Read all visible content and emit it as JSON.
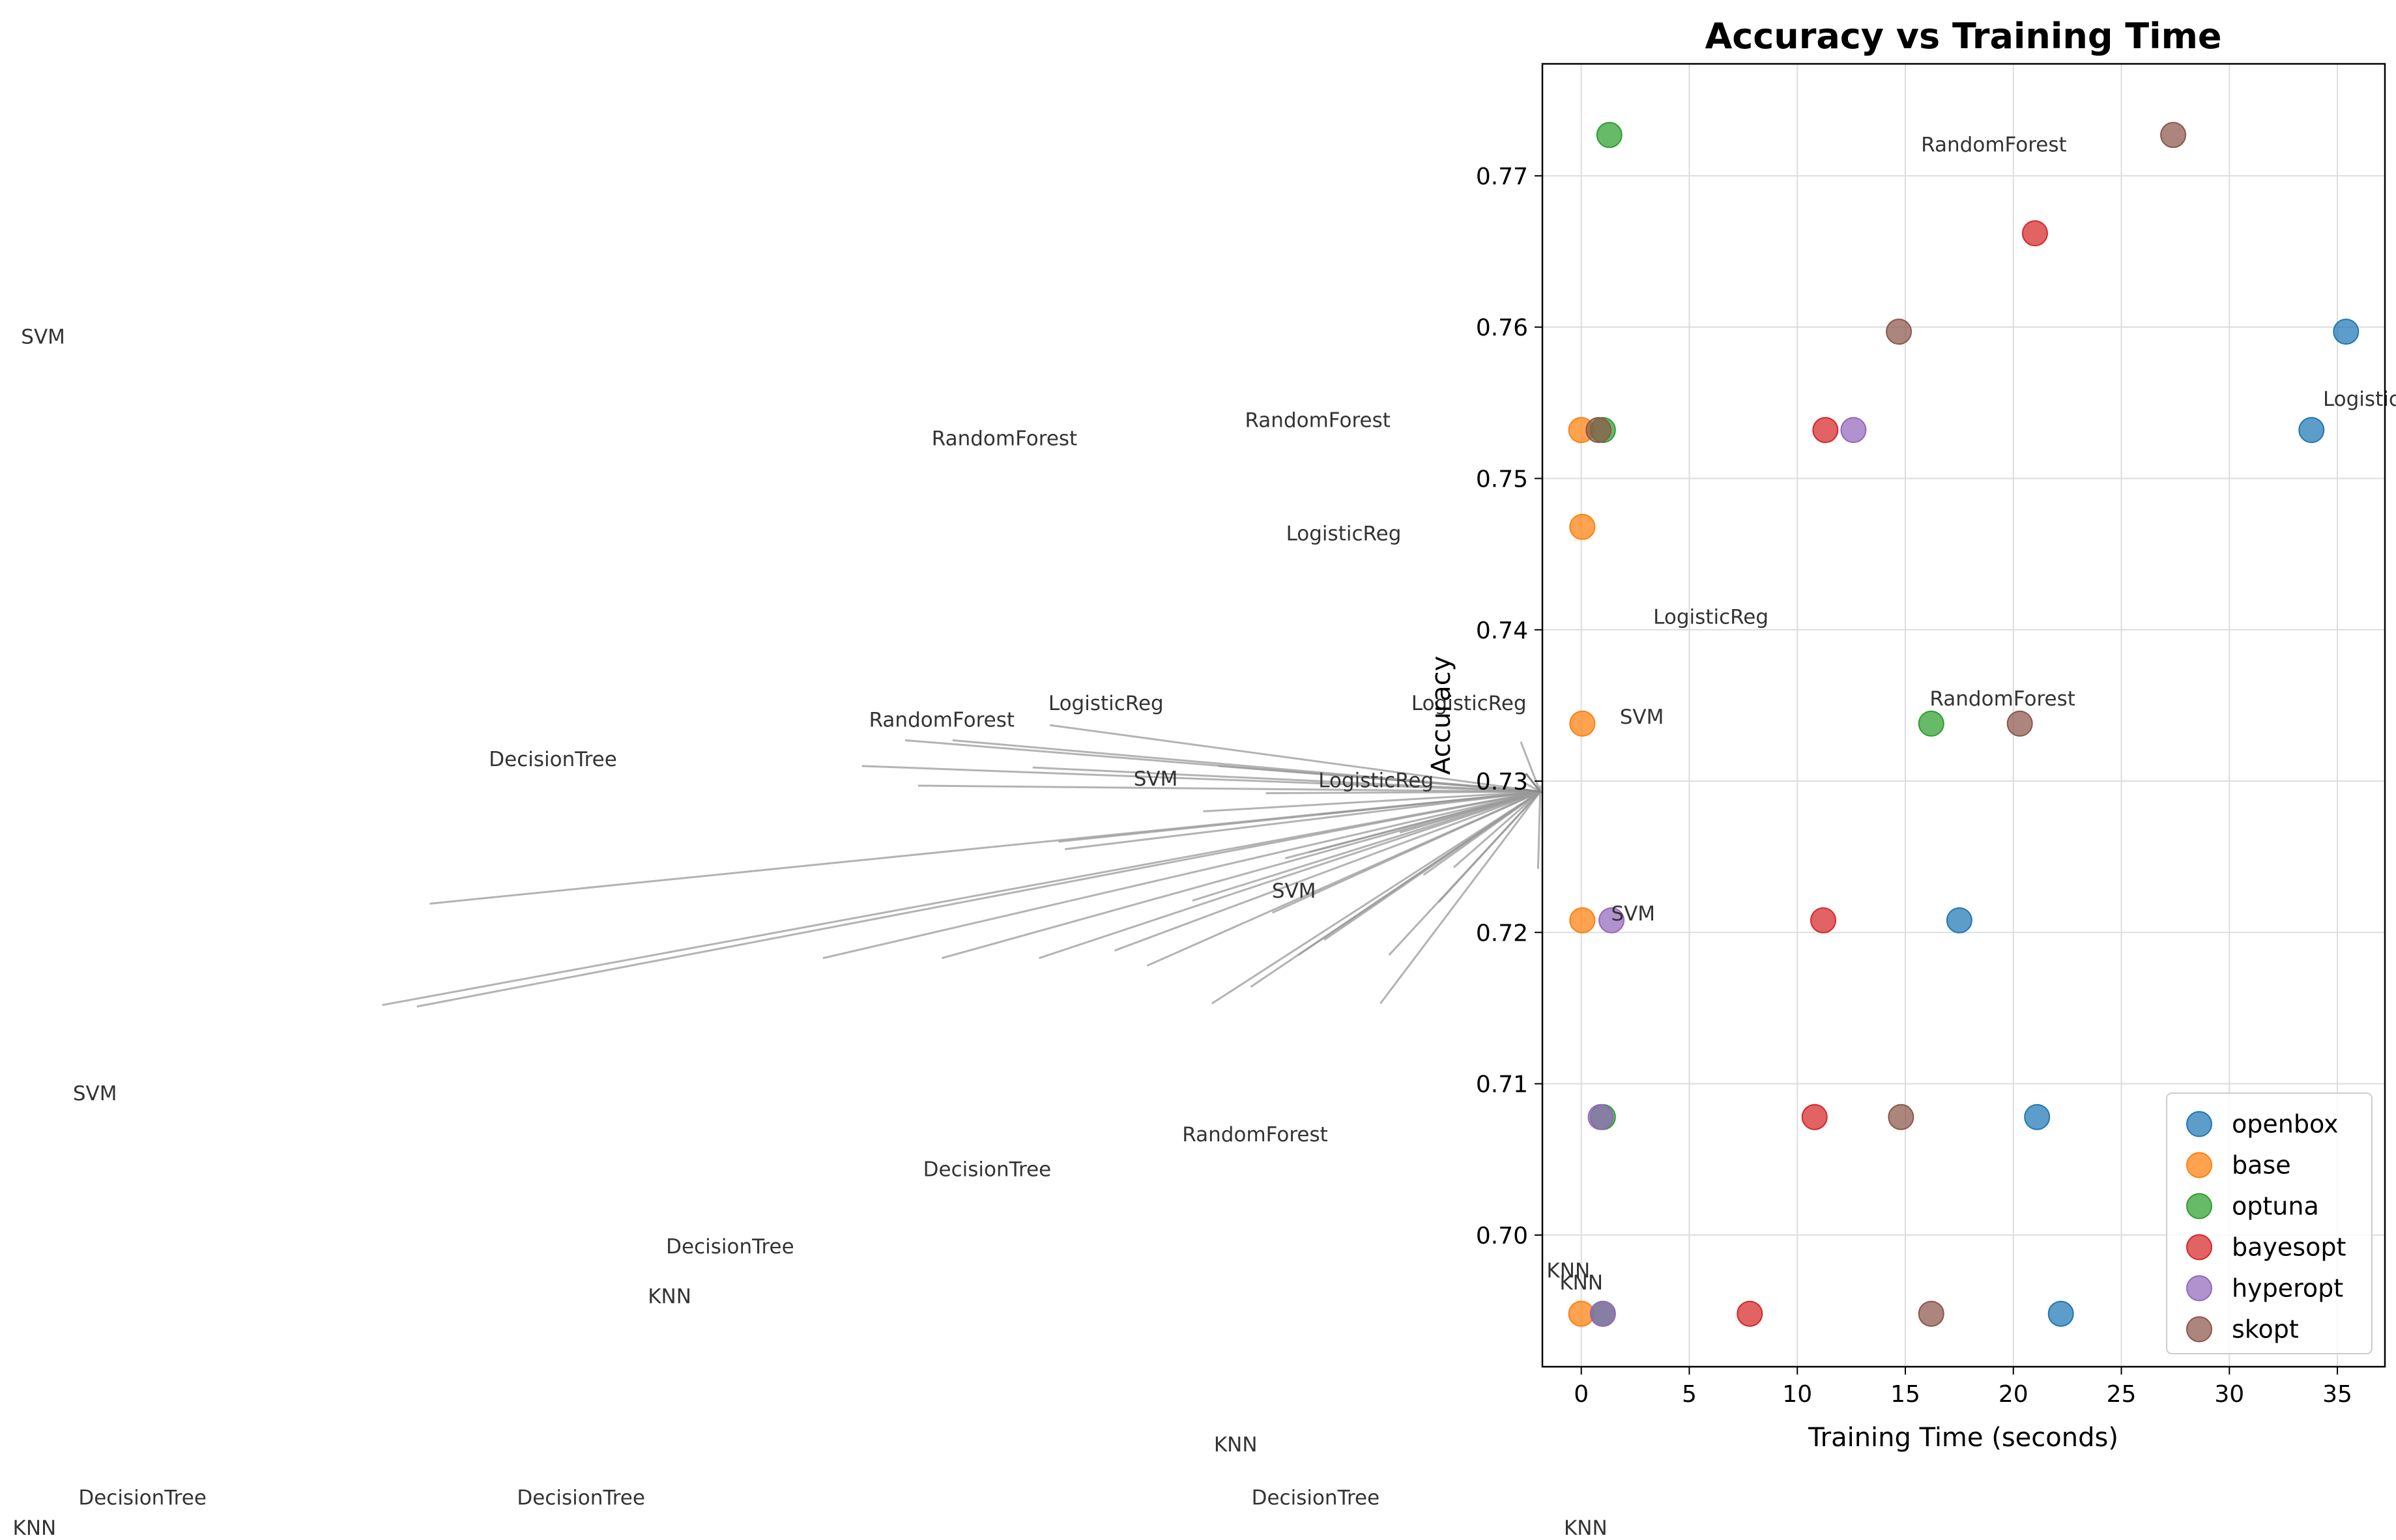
{
  "chart_data": {
    "type": "scatter",
    "title": "Accuracy vs Training Time",
    "xlabel": "Training Time (seconds)",
    "ylabel": "Accuracy",
    "xlim": [
      -1.8,
      37.2
    ],
    "ylim": [
      0.6913,
      0.7774
    ],
    "xticks": [
      0,
      5,
      10,
      15,
      20,
      25,
      30,
      35
    ],
    "yticks": [
      0.7,
      0.71,
      0.72,
      0.73,
      0.74,
      0.75,
      0.76,
      0.77
    ],
    "grid": true,
    "legend_position": "lower-right",
    "series": [
      {
        "name": "openbox",
        "color": "#1f77b4",
        "points": [
          [
            35.4,
            0.7597
          ],
          [
            33.8,
            0.7532
          ],
          [
            17.5,
            0.7208
          ],
          [
            21.1,
            0.7078
          ],
          [
            22.2,
            0.6948
          ]
        ]
      },
      {
        "name": "base",
        "color": "#ff7f0e",
        "points": [
          [
            0.0,
            0.7532
          ],
          [
            0.05,
            0.7468
          ],
          [
            0.05,
            0.7338
          ],
          [
            0.05,
            0.7208
          ],
          [
            0.0,
            0.6948
          ]
        ]
      },
      {
        "name": "optuna",
        "color": "#2ca02c",
        "points": [
          [
            1.3,
            0.7727
          ],
          [
            1.0,
            0.7532
          ],
          [
            16.2,
            0.7338
          ],
          [
            1.0,
            0.7078
          ],
          [
            1.0,
            0.6948
          ]
        ]
      },
      {
        "name": "bayesopt",
        "color": "#d62728",
        "points": [
          [
            21.0,
            0.7662
          ],
          [
            11.3,
            0.7532
          ],
          [
            11.2,
            0.7208
          ],
          [
            10.8,
            0.7078
          ],
          [
            7.8,
            0.6948
          ]
        ]
      },
      {
        "name": "hyperopt",
        "color": "#9467bd",
        "points": [
          [
            12.6,
            0.7532
          ],
          [
            1.4,
            0.7208
          ],
          [
            0.9,
            0.7078
          ],
          [
            1.0,
            0.6948
          ]
        ]
      },
      {
        "name": "skopt",
        "color": "#8c564b",
        "points": [
          [
            27.4,
            0.7727
          ],
          [
            14.7,
            0.7597
          ],
          [
            0.8,
            0.7532
          ],
          [
            20.3,
            0.7338
          ],
          [
            14.8,
            0.7078
          ],
          [
            16.2,
            0.6948
          ]
        ]
      }
    ],
    "annotations": [
      {
        "text": "RandomForest",
        "x": 19.1,
        "y": 0.7716
      },
      {
        "text": "LogisticReg",
        "x": 37.0,
        "y": 0.7548
      },
      {
        "text": "LogisticReg",
        "x": 6.0,
        "y": 0.7404
      },
      {
        "text": "RandomForest",
        "x": 19.5,
        "y": 0.735
      },
      {
        "text": "SVM",
        "x": 2.8,
        "y": 0.7338
      },
      {
        "text": "SVM",
        "x": 2.4,
        "y": 0.7208
      },
      {
        "text": "KNN",
        "x": -0.6,
        "y": 0.6972
      },
      {
        "text": "KNN",
        "x": 0.0,
        "y": 0.6964
      },
      {
        "text": "SVM",
        "x": -71.2,
        "y": 0.7589
      },
      {
        "text": "RandomForest",
        "x": -26.7,
        "y": 0.7522
      },
      {
        "text": "RandomForest",
        "x": -12.2,
        "y": 0.7534
      },
      {
        "text": "LogisticReg",
        "x": -11.0,
        "y": 0.7459
      },
      {
        "text": "LogisticReg",
        "x": -22.0,
        "y": 0.7347
      },
      {
        "text": "RandomForest",
        "x": -29.6,
        "y": 0.7336
      },
      {
        "text": "LogisticReg",
        "x": -5.2,
        "y": 0.7347
      },
      {
        "text": "DecisionTree",
        "x": -47.6,
        "y": 0.731
      },
      {
        "text": "LogisticReg",
        "x": -9.5,
        "y": 0.7296
      },
      {
        "text": "SVM",
        "x": -19.7,
        "y": 0.7297
      },
      {
        "text": "SVM",
        "x": -13.3,
        "y": 0.7223
      },
      {
        "text": "SVM",
        "x": -68.8,
        "y": 0.7089
      },
      {
        "text": "RandomForest",
        "x": -15.1,
        "y": 0.7062
      },
      {
        "text": "DecisionTree",
        "x": -27.5,
        "y": 0.7039
      },
      {
        "text": "DecisionTree",
        "x": -39.4,
        "y": 0.6988
      },
      {
        "text": "KNN",
        "x": -42.2,
        "y": 0.6955
      },
      {
        "text": "KNN",
        "x": -16.0,
        "y": 0.6857
      },
      {
        "text": "DecisionTree",
        "x": -66.6,
        "y": 0.6822
      },
      {
        "text": "DecisionTree",
        "x": -46.3,
        "y": 0.6822
      },
      {
        "text": "DecisionTree",
        "x": -12.3,
        "y": 0.6822
      },
      {
        "text": "KNN",
        "x": -71.6,
        "y": 0.6802
      },
      {
        "text": "KNN",
        "x": 0.2,
        "y": 0.6802
      }
    ],
    "arrow_tails": [
      [
        -24.6,
        0.7337
      ],
      [
        -31.3,
        0.7327
      ],
      [
        -33.3,
        0.731
      ],
      [
        -29.1,
        0.7327
      ],
      [
        -30.7,
        0.7297
      ],
      [
        -25.4,
        0.7309
      ],
      [
        -53.3,
        0.7219
      ],
      [
        -55.5,
        0.7152
      ],
      [
        -53.9,
        0.7151
      ],
      [
        -24.2,
        0.726
      ],
      [
        -23.9,
        0.7255
      ],
      [
        -21.6,
        0.7188
      ],
      [
        -25.1,
        0.7183
      ],
      [
        -29.6,
        0.7183
      ],
      [
        -35.1,
        0.7183
      ],
      [
        -18.0,
        0.7221
      ],
      [
        -20.1,
        0.7178
      ],
      [
        -17.1,
        0.7153
      ],
      [
        -15.3,
        0.7164
      ],
      [
        -14.3,
        0.7213
      ],
      [
        -11.9,
        0.7195
      ],
      [
        -12.6,
        0.7253
      ],
      [
        -13.7,
        0.7249
      ],
      [
        -13.1,
        0.7185
      ],
      [
        -8.9,
        0.7185
      ],
      [
        -9.3,
        0.7153
      ],
      [
        -7.3,
        0.7238
      ],
      [
        -8.4,
        0.7266
      ],
      [
        -12.1,
        0.7278
      ],
      [
        -14.6,
        0.7292
      ],
      [
        -9.6,
        0.7302
      ],
      [
        -16.8,
        0.731
      ],
      [
        -17.5,
        0.728
      ],
      [
        -5.9,
        0.7243
      ],
      [
        -6.6,
        0.722
      ],
      [
        -2.0,
        0.7242
      ],
      [
        -1.9,
        0.7297
      ],
      [
        -2.9,
        0.7301
      ],
      [
        -2.8,
        0.7326
      ]
    ],
    "arrow_head": [
      -1.9,
      0.7293
    ]
  }
}
